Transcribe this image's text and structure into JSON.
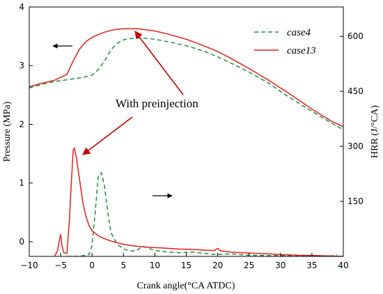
{
  "chart_data": {
    "type": "line",
    "xlabel": "Crank angle(°CA ATDC)",
    "ylabel_left": "Pressure (MPa)",
    "ylabel_right": "HRR (J/°CA)",
    "xlim": [
      -10,
      40
    ],
    "ylim_left": [
      -0.25,
      4
    ],
    "ylim_right": [
      0,
      680
    ],
    "x_ticks": [
      -10,
      -5,
      0,
      5,
      10,
      15,
      20,
      25,
      30,
      35,
      40
    ],
    "y_left_ticks": [
      0,
      1,
      2,
      3,
      4
    ],
    "y_right_ticks": [
      150,
      300,
      450,
      600
    ],
    "grid": false,
    "legend_position": "top-right",
    "colors": {
      "case4": "#1e8a3c",
      "case13": "#e01e1e",
      "annotation": "#c00000",
      "axis": "#000000"
    },
    "series": [
      {
        "name": "case4",
        "axis": "left",
        "style": "dashed",
        "x": [
          -10,
          -8,
          -6,
          -4,
          -2,
          -1,
          0,
          1,
          2,
          3,
          4,
          5,
          6,
          7,
          8,
          10,
          12,
          15,
          18,
          20,
          22,
          25,
          28,
          30,
          32,
          35,
          38,
          40
        ],
        "values": [
          2.62,
          2.68,
          2.73,
          2.76,
          2.79,
          2.81,
          2.84,
          2.93,
          3.08,
          3.27,
          3.38,
          3.44,
          3.46,
          3.47,
          3.47,
          3.45,
          3.41,
          3.34,
          3.24,
          3.15,
          3.05,
          2.89,
          2.71,
          2.56,
          2.42,
          2.22,
          2.03,
          1.91
        ]
      },
      {
        "name": "case13",
        "axis": "left",
        "style": "solid",
        "x": [
          -10,
          -8,
          -6,
          -5,
          -4,
          -3,
          -2,
          -1,
          0,
          1,
          2,
          3,
          4,
          5,
          6,
          7,
          8,
          10,
          12,
          15,
          18,
          20,
          22,
          25,
          28,
          30,
          32,
          35,
          38,
          40
        ],
        "values": [
          2.64,
          2.7,
          2.75,
          2.8,
          2.85,
          3.08,
          3.28,
          3.41,
          3.48,
          3.53,
          3.57,
          3.6,
          3.62,
          3.63,
          3.63,
          3.63,
          3.62,
          3.59,
          3.54,
          3.45,
          3.33,
          3.24,
          3.13,
          2.95,
          2.76,
          2.62,
          2.48,
          2.26,
          2.06,
          1.96
        ]
      },
      {
        "name": "case4",
        "axis": "right",
        "style": "dashed",
        "x": [
          -4,
          -2,
          -0.5,
          0,
          0.5,
          1,
          1.5,
          2,
          2.5,
          3,
          4,
          5,
          6,
          7,
          8,
          10,
          12,
          14,
          16,
          18,
          20,
          22,
          25,
          28,
          30,
          33,
          36,
          38,
          39
        ],
        "values": [
          0,
          0,
          5,
          30,
          120,
          220,
          228,
          190,
          120,
          65,
          33,
          20,
          16,
          14,
          28,
          16,
          12,
          10,
          12,
          8,
          5,
          7,
          3,
          2,
          2,
          1,
          1,
          1,
          4
        ]
      },
      {
        "name": "case13",
        "axis": "right",
        "style": "solid",
        "x": [
          -6,
          -5.5,
          -5.2,
          -5,
          -4.8,
          -4.5,
          -4,
          -3.6,
          -3.3,
          -3,
          -2.8,
          -2.5,
          -2,
          -1.5,
          -1,
          -0.5,
          0,
          1,
          2,
          3,
          4,
          5,
          6,
          8,
          10,
          12,
          14,
          16,
          18,
          19.5,
          20,
          20.5,
          22,
          25,
          28,
          30,
          33,
          36,
          38,
          40
        ],
        "values": [
          0,
          15,
          45,
          60,
          30,
          10,
          8,
          100,
          200,
          290,
          295,
          270,
          210,
          150,
          110,
          85,
          70,
          56,
          48,
          42,
          37,
          33,
          30,
          26,
          24,
          22,
          20,
          19,
          17,
          16,
          22,
          15,
          12,
          9,
          7,
          5,
          3,
          2,
          1,
          0
        ]
      }
    ],
    "annotations": [
      {
        "text": "With preinjection"
      }
    ]
  }
}
